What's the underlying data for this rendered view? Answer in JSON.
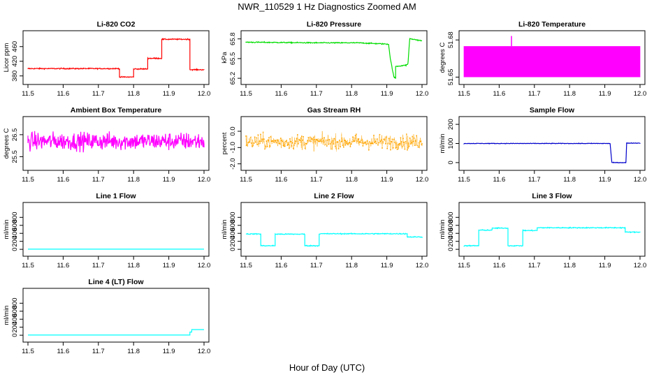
{
  "figure": {
    "title": "NWR_110529  1 Hz Diagnostics Zoomed AM",
    "xlabel": "Hour of Day (UTC)"
  },
  "chart_data": [
    {
      "type": "line",
      "title": "Li-820 CO2",
      "ylabel": "Licor ppm",
      "color": "#ff0000",
      "xlim": [
        11.5,
        12.0
      ],
      "ylim": [
        370,
        490
      ],
      "xticks": [
        "11.5",
        "11.6",
        "11.7",
        "11.8",
        "11.9",
        "12.0"
      ],
      "yticks": [
        "380",
        "420",
        "460"
      ],
      "series": [
        {
          "x": [
            11.5,
            11.76,
            11.76,
            11.8,
            11.8,
            11.84,
            11.84,
            11.88,
            11.88,
            11.96,
            11.96,
            12.0
          ],
          "y": [
            400,
            400,
            377,
            377,
            399,
            399,
            428,
            428,
            480,
            480,
            397,
            397
          ],
          "noise": 1.5
        }
      ]
    },
    {
      "type": "line",
      "title": "Li-820 Pressure",
      "ylabel": "kPa",
      "color": "#00dd00",
      "xlim": [
        11.5,
        12.0
      ],
      "ylim": [
        65.18,
        65.85
      ],
      "xticks": [
        "11.5",
        "11.6",
        "11.7",
        "11.8",
        "11.9",
        "12.0"
      ],
      "yticks": [
        "65.2",
        "65.5",
        "65.8"
      ],
      "series": [
        {
          "x": [
            11.5,
            11.7,
            11.82,
            11.905,
            11.91,
            11.92,
            11.925,
            11.925,
            11.955,
            11.96,
            11.965,
            11.98,
            12.0
          ],
          "y": [
            65.75,
            65.74,
            65.74,
            65.72,
            65.5,
            65.22,
            65.2,
            65.38,
            65.4,
            65.42,
            65.8,
            65.79,
            65.77
          ],
          "noise": 0.008
        }
      ]
    },
    {
      "type": "line",
      "title": "Li-820 Temperature",
      "ylabel": "degrees C",
      "color": "#ff00ff",
      "xlim": [
        11.5,
        12.0
      ],
      "ylim": [
        51.648,
        51.6835
      ],
      "xticks": [
        "11.5",
        "11.6",
        "11.7",
        "11.8",
        "11.9",
        "12.0"
      ],
      "yticks": [
        "51.65",
        "51.68"
      ],
      "series": [
        {
          "x": [
            11.5,
            12.0
          ],
          "y": [
            51.65,
            51.675
          ],
          "mode": "oscillate",
          "spike": {
            "x": 11.635,
            "y": 51.6832
          }
        }
      ]
    },
    {
      "type": "line",
      "title": "Ambient Box Temperature",
      "ylabel": "degrees C",
      "color": "#ff00ff",
      "xlim": [
        11.5,
        12.0
      ],
      "ylim": [
        25.1,
        27.1
      ],
      "xticks": [
        "11.5",
        "11.6",
        "11.7",
        "11.8",
        "11.9",
        "12.0"
      ],
      "yticks": [
        "25.5",
        "26.5"
      ],
      "series": [
        {
          "x": [
            11.5,
            12.0
          ],
          "y": [
            26.2,
            26.2
          ],
          "noise": 0.4
        }
      ]
    },
    {
      "type": "scatter",
      "title": "Gas Stream RH",
      "ylabel": "percent",
      "color": "#ffa500",
      "xlim": [
        11.5,
        12.0
      ],
      "ylim": [
        -2.1,
        0.6
      ],
      "xticks": [
        "11.5",
        "11.6",
        "11.7",
        "11.8",
        "11.9",
        "12.0"
      ],
      "yticks": [
        "-2.0",
        "-1.0",
        "0.0"
      ],
      "series": [
        {
          "x": [
            11.5,
            12.0
          ],
          "y": [
            -0.65,
            -0.65
          ],
          "noise": 0.45
        }
      ]
    },
    {
      "type": "line",
      "title": "Sample Flow",
      "ylabel": "ml/min",
      "color": "#0000cc",
      "xlim": [
        11.5,
        12.0
      ],
      "ylim": [
        -15,
        215
      ],
      "xticks": [
        "11.5",
        "11.6",
        "11.7",
        "11.8",
        "11.9",
        "12.0"
      ],
      "yticks": [
        "0",
        "100",
        "200"
      ],
      "series": [
        {
          "x": [
            11.5,
            11.915,
            11.92,
            11.96,
            11.962,
            12.0
          ],
          "y": [
            100,
            100,
            0,
            0,
            102,
            102
          ],
          "noise": 1.5
        }
      ]
    },
    {
      "type": "line",
      "title": "Line 1 Flow",
      "ylabel": "ml/min",
      "color": "#00ffff",
      "xlim": [
        11.5,
        12.0
      ],
      "ylim": [
        -50,
        1050
      ],
      "xticks": [
        "11.5",
        "11.6",
        "11.7",
        "11.8",
        "11.9",
        "12.0"
      ],
      "yticks": [
        "0",
        "200",
        "400",
        "600",
        "800"
      ],
      "series": [
        {
          "x": [
            11.5,
            12.0
          ],
          "y": [
            5,
            5
          ],
          "noise": 0
        }
      ]
    },
    {
      "type": "line",
      "title": "Line 2 Flow",
      "ylabel": "ml/min",
      "color": "#00ffff",
      "xlim": [
        11.5,
        12.0
      ],
      "ylim": [
        -50,
        1050
      ],
      "xticks": [
        "11.5",
        "11.6",
        "11.7",
        "11.8",
        "11.9",
        "12.0"
      ],
      "yticks": [
        "0",
        "200",
        "400",
        "600",
        "800"
      ],
      "series": [
        {
          "x": [
            11.5,
            11.542,
            11.542,
            11.583,
            11.583,
            11.667,
            11.667,
            11.708,
            11.708,
            11.958,
            11.958,
            12.0
          ],
          "y": [
            385,
            385,
            90,
            90,
            380,
            380,
            90,
            90,
            390,
            390,
            310,
            310
          ],
          "noise": 12
        }
      ]
    },
    {
      "type": "line",
      "title": "Line 3 Flow",
      "ylabel": "ml/min",
      "color": "#00ffff",
      "xlim": [
        11.5,
        12.0
      ],
      "ylim": [
        -50,
        1050
      ],
      "xticks": [
        "11.5",
        "11.6",
        "11.7",
        "11.8",
        "11.9",
        "12.0"
      ],
      "yticks": [
        "0",
        "200",
        "400",
        "600",
        "800"
      ],
      "series": [
        {
          "x": [
            11.5,
            11.542,
            11.542,
            11.58,
            11.58,
            11.625,
            11.625,
            11.667,
            11.667,
            11.708,
            11.708,
            11.958,
            11.958,
            12.0
          ],
          "y": [
            90,
            90,
            480,
            480,
            530,
            530,
            90,
            90,
            470,
            470,
            540,
            540,
            430,
            430
          ],
          "noise": 12
        }
      ]
    },
    {
      "type": "line",
      "title": "Line 4 (LT) Flow",
      "ylabel": "ml/min",
      "color": "#00ffff",
      "xlim": [
        11.5,
        12.0
      ],
      "ylim": [
        -50,
        1050
      ],
      "xticks": [
        "11.5",
        "11.6",
        "11.7",
        "11.8",
        "11.9",
        "12.0"
      ],
      "yticks": [
        "0",
        "200",
        "400",
        "600",
        "800"
      ],
      "series": [
        {
          "x": [
            11.5,
            11.96,
            11.96,
            11.965,
            11.965,
            12.0
          ],
          "y": [
            5,
            5,
            80,
            80,
            140,
            140
          ],
          "noise": 0
        }
      ]
    }
  ]
}
